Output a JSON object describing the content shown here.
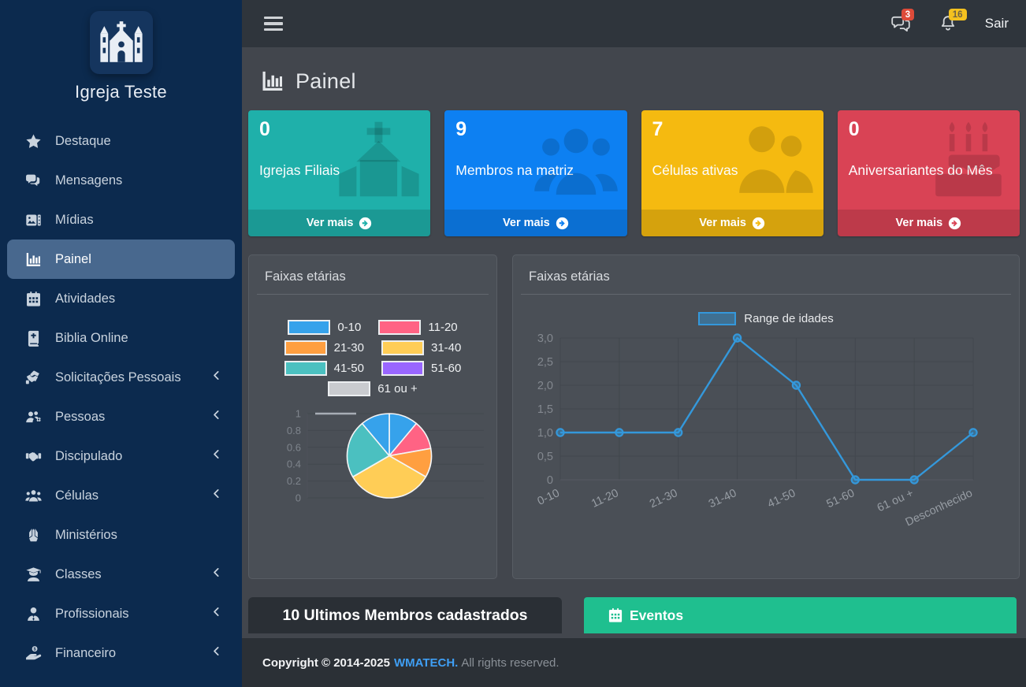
{
  "app": {
    "brand_name": "Igreja Teste"
  },
  "navbar": {
    "logout_label": "Sair",
    "messages": {
      "icon": "comments-icon",
      "badge": "3",
      "badge_color": "#dd4b39"
    },
    "notifications": {
      "icon": "bell-icon",
      "badge": "16",
      "badge_color": "#f4c11f"
    }
  },
  "page": {
    "title": "Painel",
    "title_icon": "chart-bar-icon"
  },
  "sidebar": {
    "items": [
      {
        "label": "Destaque",
        "icon": "star-icon",
        "active": false,
        "expandable": false
      },
      {
        "label": "Mensagens",
        "icon": "comments-icon",
        "active": false,
        "expandable": false
      },
      {
        "label": "Mídias",
        "icon": "media-icon",
        "active": false,
        "expandable": false
      },
      {
        "label": "Painel",
        "icon": "chart-bar-icon",
        "active": true,
        "expandable": false
      },
      {
        "label": "Atividades",
        "icon": "calendar-icon",
        "active": false,
        "expandable": false
      },
      {
        "label": "Biblia Online",
        "icon": "bible-icon",
        "active": false,
        "expandable": false
      },
      {
        "label": "Solicitações Pessoais",
        "icon": "hands-helping-icon",
        "active": false,
        "expandable": true
      },
      {
        "label": "Pessoas",
        "icon": "users-gear-icon",
        "active": false,
        "expandable": true
      },
      {
        "label": "Discipulado",
        "icon": "handshake-icon",
        "active": false,
        "expandable": true
      },
      {
        "label": "Células",
        "icon": "users-icon",
        "active": false,
        "expandable": true
      },
      {
        "label": "Ministérios",
        "icon": "praying-hands-icon",
        "active": false,
        "expandable": false
      },
      {
        "label": "Classes",
        "icon": "person-graduate-icon",
        "active": false,
        "expandable": true
      },
      {
        "label": "Profissionais",
        "icon": "user-tie-icon",
        "active": false,
        "expandable": true
      },
      {
        "label": "Financeiro",
        "icon": "hand-dollar-icon",
        "active": false,
        "expandable": true
      },
      {
        "label": "",
        "icon": "users-icon",
        "active": false,
        "expandable": false,
        "partial": true
      }
    ]
  },
  "info_boxes": [
    {
      "value": "0",
      "label": "Igrejas Filiais",
      "link_label": "Ver mais",
      "color": "#1fb0aa",
      "icon": "church-icon"
    },
    {
      "value": "9",
      "label": "Membros na matriz",
      "link_label": "Ver mais",
      "color": "#0d80f2",
      "icon": "members-group-icon"
    },
    {
      "value": "7",
      "label": "Células ativas",
      "link_label": "Ver mais",
      "color": "#f5ba10",
      "icon": "people-pair-icon"
    },
    {
      "value": "0",
      "label": "Aniversariantes do Mês",
      "link_label": "Ver mais",
      "color": "#d94355",
      "icon": "birthday-cake-icon"
    }
  ],
  "panels": {
    "age_pie": {
      "title": "Faixas etárias"
    },
    "age_line": {
      "title": "Faixas etárias"
    },
    "latest_members": {
      "title": "10 Ultimos Membros cadastrados"
    },
    "events": {
      "title": "Eventos",
      "icon": "calendar-icon",
      "color": "#1fbf8f"
    }
  },
  "chart_data": [
    {
      "type": "pie",
      "title": "Faixas etárias",
      "labels": [
        "0-10",
        "11-20",
        "21-30",
        "31-40",
        "41-50",
        "51-60",
        "61 ou +",
        "Desconhecido"
      ],
      "values": [
        1,
        1,
        1,
        3,
        2,
        0,
        0,
        1
      ],
      "colors": [
        "#36a2eb",
        "#ff6384",
        "#ff9f40",
        "#ffcd56",
        "#4bc0c0",
        "#9966ff",
        "#c9cbcf",
        "#36a2eb"
      ],
      "legend_entries": [
        "0-10",
        "11-20",
        "21-30",
        "31-40",
        "41-50",
        "51-60",
        "61 ou +"
      ],
      "legend_position": "top",
      "hidden_axis_ticks": [
        "1",
        "0.8",
        "0.6",
        "0.4",
        "0.2",
        "0"
      ],
      "grid": true
    },
    {
      "type": "line",
      "title": "Faixas etárias",
      "categories": [
        "0-10",
        "11-20",
        "21-30",
        "31-40",
        "41-50",
        "51-60",
        "61 ou +",
        "Desconhecido"
      ],
      "series": [
        {
          "name": "Range de idades",
          "values": [
            1,
            1,
            1,
            3,
            2,
            0,
            0,
            1
          ]
        }
      ],
      "ylim": [
        0,
        3
      ],
      "ytick_labels": [
        "3,0",
        "2,5",
        "2,0",
        "1,5",
        "1,0",
        "0,5",
        "0"
      ],
      "line_color": "#3498db",
      "legend_position": "top",
      "grid": true
    }
  ],
  "footer": {
    "copyright": "Copyright © 2014-2025",
    "brand": "WMATECH.",
    "rights": "All rights reserved.",
    "brand_color": "#3f9ff5"
  }
}
